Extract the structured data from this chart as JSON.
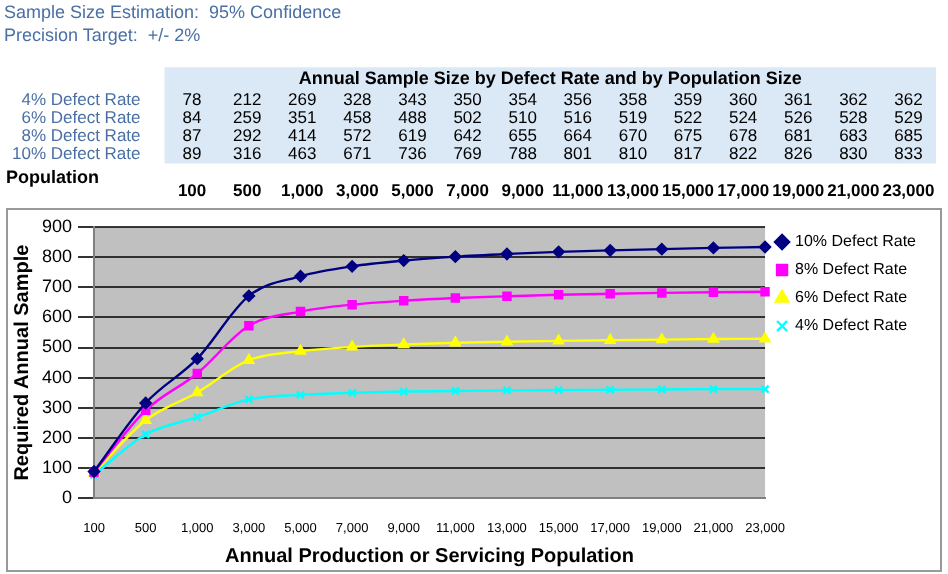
{
  "chart_data": [
    {
      "type": "heatmap",
      "title": "Sample Size Estimation:  95% Confidence",
      "subtitle": "Precision Target:  +/- 2%",
      "annotations": [
        "Annual Sample Size by Defect Rate and by Population Size"
      ],
      "xlabel": "Population",
      "color": "#dbe8f5",
      "data_labels": true,
      "categories": [
        "100",
        "500",
        "1,000",
        "3,000",
        "5,000",
        "7,000",
        "9,000",
        "11,000",
        "13,000",
        "15,000",
        "17,000",
        "19,000",
        "21,000",
        "23,000"
      ],
      "y_categories": [
        "4% Defect Rate",
        "6% Defect Rate",
        "8% Defect Rate",
        "10% Defect Rate"
      ],
      "cells": [
        [
          78,
          212,
          269,
          328,
          343,
          350,
          354,
          356,
          358,
          359,
          360,
          361,
          362,
          362
        ],
        [
          84,
          259,
          351,
          458,
          488,
          502,
          510,
          516,
          519,
          522,
          524,
          526,
          528,
          529
        ],
        [
          87,
          292,
          414,
          572,
          619,
          642,
          655,
          664,
          670,
          675,
          678,
          681,
          683,
          685
        ],
        [
          89,
          316,
          463,
          671,
          736,
          769,
          788,
          801,
          810,
          817,
          822,
          826,
          830,
          833
        ]
      ]
    },
    {
      "type": "line",
      "xlabel": "Annual Production or Servicing Population",
      "ylabel": "Required Annual Sample",
      "categories": [
        "100",
        "500",
        "1,000",
        "3,000",
        "5,000",
        "7,000",
        "9,000",
        "11,000",
        "13,000",
        "15,000",
        "17,000",
        "19,000",
        "21,000",
        "23,000"
      ],
      "series": [
        {
          "name": "10% Defect Rate",
          "color": "#000080",
          "marker": "diamond",
          "values": [
            89,
            316,
            463,
            671,
            736,
            769,
            788,
            801,
            810,
            817,
            822,
            826,
            830,
            833
          ]
        },
        {
          "name": "8% Defect Rate",
          "color": "#ff00ff",
          "marker": "square",
          "values": [
            87,
            292,
            414,
            572,
            619,
            642,
            655,
            664,
            670,
            675,
            678,
            681,
            683,
            685
          ]
        },
        {
          "name": "6% Defect Rate",
          "color": "#ffff00",
          "marker": "triangle",
          "values": [
            84,
            259,
            351,
            458,
            488,
            502,
            510,
            516,
            519,
            522,
            524,
            526,
            528,
            529
          ]
        },
        {
          "name": "4% Defect Rate",
          "color": "#00ffff",
          "marker": "cross",
          "values": [
            78,
            212,
            269,
            328,
            343,
            350,
            354,
            356,
            358,
            359,
            360,
            361,
            362,
            362
          ]
        }
      ],
      "ylim": [
        0,
        900
      ],
      "yticks": [
        0,
        100,
        200,
        300,
        400,
        500,
        600,
        700,
        800,
        900
      ],
      "grid": "y",
      "legend": "right"
    }
  ]
}
